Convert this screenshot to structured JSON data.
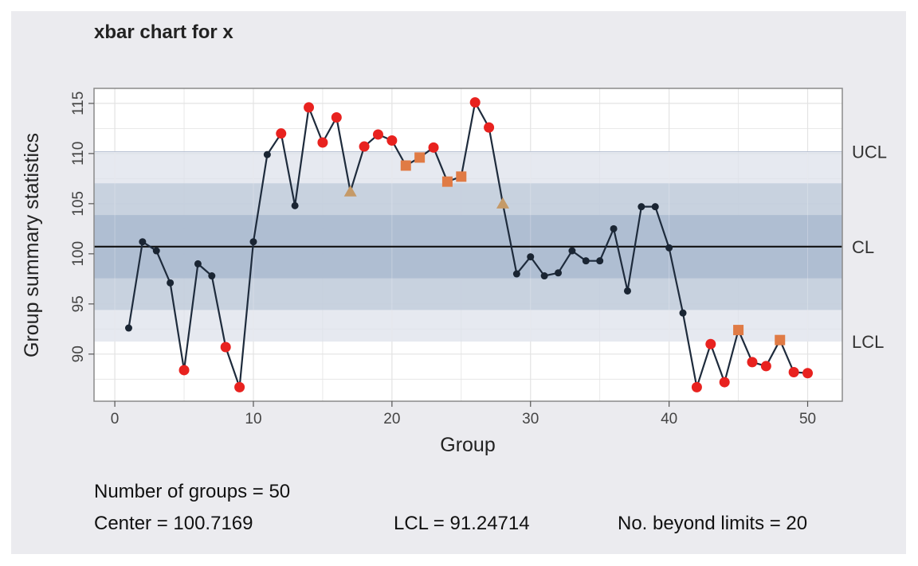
{
  "chart_data": {
    "type": "line",
    "title": "xbar chart for x",
    "xlabel": "Group",
    "ylabel": "Group summary statistics",
    "xlim": [
      -1.5,
      52.5
    ],
    "ylim": [
      85.3,
      116.5
    ],
    "x_ticks": [
      0,
      10,
      20,
      30,
      40,
      50
    ],
    "y_ticks": [
      90,
      95,
      100,
      105,
      110,
      115
    ],
    "grid": true,
    "limits": {
      "UCL": 110.19,
      "CL": 100.7169,
      "LCL": 91.24714
    },
    "limit_labels": [
      "UCL",
      "CL",
      "LCL"
    ],
    "zones": [
      {
        "low": 91.24714,
        "high": 110.19
      },
      {
        "low": 94.4,
        "high": 107.03
      },
      {
        "low": 97.56,
        "high": 103.87
      }
    ],
    "series": [
      {
        "x": [
          1,
          2,
          3,
          4,
          5,
          6,
          7,
          8,
          9,
          10,
          11,
          12,
          13,
          14,
          15,
          16,
          17,
          18,
          19,
          20,
          21,
          22,
          23,
          24,
          25,
          26,
          27,
          28,
          29,
          30,
          31,
          32,
          33,
          34,
          35,
          36,
          37,
          38,
          39,
          40,
          41,
          42,
          43,
          44,
          45,
          46,
          47,
          48,
          49,
          50
        ],
        "values": [
          92.6,
          101.2,
          100.3,
          97.1,
          88.4,
          99.0,
          97.8,
          90.7,
          86.7,
          101.2,
          109.9,
          112.0,
          104.8,
          114.6,
          111.1,
          113.6,
          106.2,
          110.7,
          111.9,
          111.3,
          108.8,
          109.6,
          110.6,
          107.2,
          107.7,
          115.1,
          112.6,
          105.0,
          98.0,
          99.7,
          97.8,
          98.1,
          100.3,
          99.3,
          99.3,
          102.5,
          96.3,
          104.7,
          104.7,
          100.6,
          94.1,
          86.7,
          91.0,
          87.2,
          92.4,
          89.2,
          88.8,
          91.4,
          88.2,
          88.1
        ],
        "markers": [
          "in",
          "in",
          "in",
          "in",
          "beyond",
          "in",
          "in",
          "beyond",
          "beyond",
          "in",
          "in",
          "beyond",
          "in",
          "beyond",
          "beyond",
          "beyond",
          "warn",
          "beyond",
          "beyond",
          "beyond",
          "run",
          "run",
          "beyond",
          "run",
          "run",
          "beyond",
          "beyond",
          "warn",
          "in",
          "in",
          "in",
          "in",
          "in",
          "in",
          "in",
          "in",
          "in",
          "in",
          "in",
          "in",
          "in",
          "beyond",
          "beyond",
          "beyond",
          "run",
          "beyond",
          "beyond",
          "run",
          "beyond",
          "beyond"
        ]
      }
    ],
    "colors": {
      "panel": "#ebebef",
      "plot_bg": "#ffffff",
      "zone_outer": "#dde2eb",
      "zone_mid": "#bdc9da",
      "zone_inner": "#a7b7ce",
      "line": "#1e2b3c",
      "point_in": "#1a2533",
      "beyond": "#e8221f",
      "run": "#e07b45",
      "warn": "#c59a68"
    }
  },
  "stats": {
    "groups": "Number of groups = 50",
    "center": "Center = 100.7169",
    "lcl": "LCL = 91.24714",
    "beyond": "No. beyond limits = 20"
  }
}
